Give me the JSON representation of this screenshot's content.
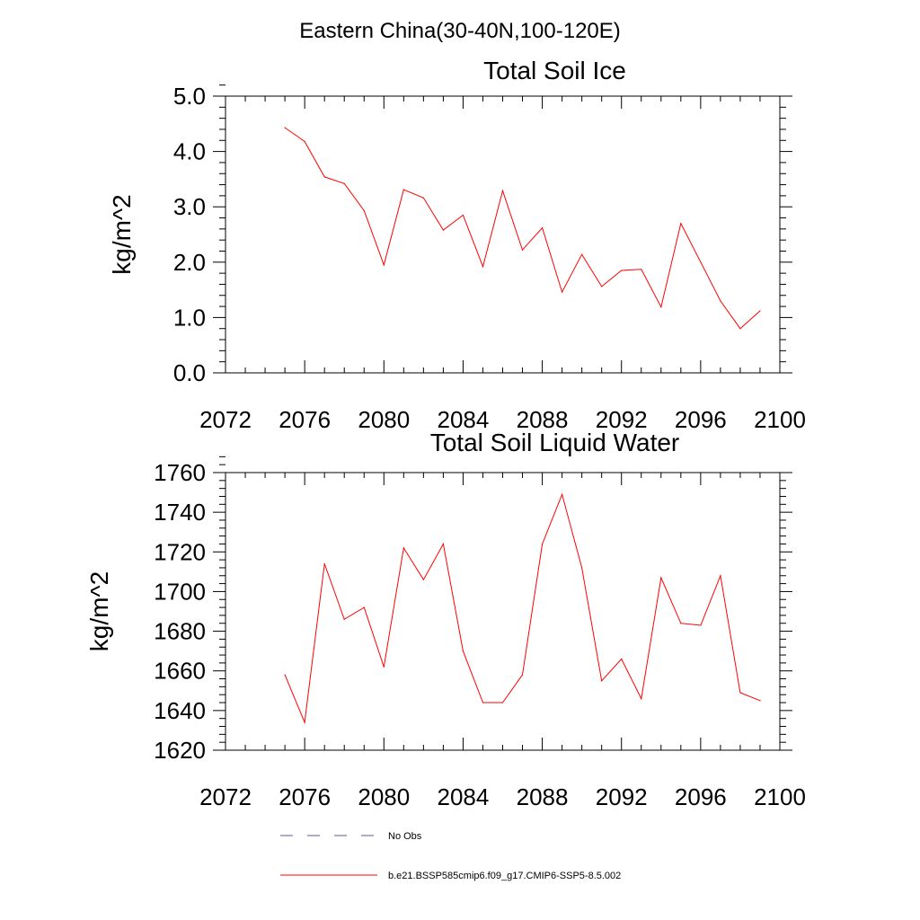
{
  "figure": {
    "suptitle": "Eastern China(30-40N,100-120E)"
  },
  "chart_data": [
    {
      "type": "line",
      "title": "Total Soil Ice",
      "xlabel": "",
      "ylabel": "kg/m^2",
      "xlim": [
        2072,
        2100
      ],
      "ylim": [
        0.0,
        5.0
      ],
      "xticks": [
        2072,
        2076,
        2080,
        2084,
        2088,
        2092,
        2096,
        2100
      ],
      "yticks": [
        0.0,
        1.0,
        2.0,
        3.0,
        4.0,
        5.0
      ],
      "ytick_labels": [
        "0.0",
        "1.0",
        "2.0",
        "3.0",
        "4.0",
        "5.0"
      ],
      "grid": false,
      "series": [
        {
          "name": "b.e21.BSSP585cmip6.f09_g17.CMIP6-SSP5-8.5.002",
          "color": "#ff0000",
          "x": [
            2075,
            2076,
            2077,
            2078,
            2079,
            2080,
            2081,
            2082,
            2083,
            2084,
            2085,
            2086,
            2087,
            2088,
            2089,
            2090,
            2091,
            2092,
            2093,
            2094,
            2095,
            2096,
            2097,
            2098,
            2099
          ],
          "y": [
            4.43,
            4.18,
            3.54,
            3.42,
            2.93,
            1.95,
            3.31,
            3.16,
            2.58,
            2.85,
            1.92,
            3.29,
            2.22,
            2.62,
            1.46,
            2.14,
            1.56,
            1.85,
            1.87,
            1.19,
            2.7,
            2.0,
            1.3,
            0.8,
            1.12
          ]
        }
      ]
    },
    {
      "type": "line",
      "title": "Total Soil Liquid Water",
      "xlabel": "",
      "ylabel": "kg/m^2",
      "xlim": [
        2072,
        2100
      ],
      "ylim": [
        1620,
        1760
      ],
      "xticks": [
        2072,
        2076,
        2080,
        2084,
        2088,
        2092,
        2096,
        2100
      ],
      "yticks": [
        1620,
        1640,
        1660,
        1680,
        1700,
        1720,
        1740,
        1760
      ],
      "ytick_labels": [
        "1620",
        "1640",
        "1660",
        "1680",
        "1700",
        "1720",
        "1740",
        "1760"
      ],
      "grid": false,
      "series": [
        {
          "name": "b.e21.BSSP585cmip6.f09_g17.CMIP6-SSP5-8.5.002",
          "color": "#ff0000",
          "x": [
            2075,
            2076,
            2077,
            2078,
            2079,
            2080,
            2081,
            2082,
            2083,
            2084,
            2085,
            2086,
            2087,
            2088,
            2089,
            2090,
            2091,
            2092,
            2093,
            2094,
            2095,
            2096,
            2097,
            2098,
            2099
          ],
          "y": [
            1658,
            1634,
            1714,
            1686,
            1692,
            1662,
            1722,
            1706,
            1724,
            1670,
            1644,
            1644,
            1658,
            1724,
            1749,
            1712,
            1655,
            1666,
            1646,
            1707,
            1684,
            1683,
            1708,
            1649,
            1645
          ]
        }
      ]
    }
  ],
  "legend": {
    "placement": "bottom-center",
    "items": [
      {
        "label": "No Obs",
        "color": "#5a5a9a",
        "style": "dashed"
      },
      {
        "label": "b.e21.BSSP585cmip6.f09_g17.CMIP6-SSP5-8.5.002",
        "color": "#ff0000",
        "style": "solid"
      }
    ]
  }
}
